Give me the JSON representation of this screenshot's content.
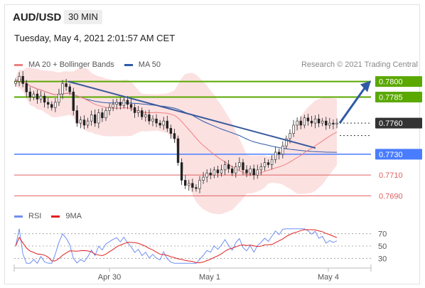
{
  "header": {
    "symbol": "AUD/USD",
    "timeframe": "30 MIN",
    "datetime": "Tuesday, May 4, 2021 2:01:57 AM CET"
  },
  "legend": {
    "ma20_label": "MA 20 + Bollinger Bands",
    "ma50_label": "MA 50",
    "credit": "Research © 2021 Trading Central",
    "rsi_label": "RSI",
    "ma9_label": "9MA"
  },
  "colors": {
    "ma20": "#f08080",
    "ma50": "#2e5aa8",
    "bands_fill": "#fbdcdc",
    "resistance": "#5aa800",
    "support": "#4a7cff",
    "minor_support": "#e06060",
    "current": "#333333",
    "rsi": "#6f8ff0",
    "ma9": "#e02020",
    "trendline": "#3a5a9c",
    "arrow": "#2e5aa8"
  },
  "chart_data": [
    {
      "type": "candlestick",
      "title": "AUD/USD 30 MIN",
      "x_ticks": [
        "Apr 30",
        "May 1",
        "May 4"
      ],
      "ylim": [
        0.768,
        0.781
      ],
      "levels": [
        {
          "label": "0.7800",
          "value": 0.78,
          "kind": "resistance"
        },
        {
          "label": "0.7785",
          "value": 0.7785,
          "kind": "resistance"
        },
        {
          "label": "0.7760",
          "value": 0.776,
          "kind": "current"
        },
        {
          "label": "0.7730",
          "value": 0.773,
          "kind": "support"
        },
        {
          "label": "0.7710",
          "value": 0.771,
          "kind": "minor_support"
        },
        {
          "label": "0.7690",
          "value": 0.769,
          "kind": "minor_support"
        }
      ],
      "close_series": [
        0.78,
        0.7805,
        0.7798,
        0.779,
        0.7785,
        0.7788,
        0.7783,
        0.7786,
        0.778,
        0.7778,
        0.7775,
        0.778,
        0.7788,
        0.7798,
        0.7795,
        0.779,
        0.7772,
        0.776,
        0.7763,
        0.7758,
        0.7762,
        0.7768,
        0.776,
        0.777,
        0.7765,
        0.7772,
        0.7775,
        0.7778,
        0.778,
        0.7777,
        0.7782,
        0.7778,
        0.7775,
        0.777,
        0.7772,
        0.7766,
        0.7768,
        0.7762,
        0.7764,
        0.776,
        0.7758,
        0.7762,
        0.7755,
        0.775,
        0.7745,
        0.7722,
        0.7705,
        0.77,
        0.7702,
        0.7698,
        0.7697,
        0.7705,
        0.7708,
        0.7712,
        0.771,
        0.7715,
        0.7712,
        0.7715,
        0.772,
        0.7716,
        0.7712,
        0.7718,
        0.7722,
        0.7715,
        0.7712,
        0.7716,
        0.771,
        0.7715,
        0.7718,
        0.7722,
        0.772,
        0.7725,
        0.7732,
        0.773,
        0.7738,
        0.7745,
        0.775,
        0.7758,
        0.7762,
        0.7758,
        0.7765,
        0.7762,
        0.776,
        0.7764,
        0.776,
        0.7762,
        0.7758,
        0.776,
        0.7759,
        0.776
      ]
    },
    {
      "type": "line",
      "title": "RSI",
      "yticks": [
        30,
        50,
        70
      ],
      "ylim": [
        20,
        80
      ]
    }
  ]
}
